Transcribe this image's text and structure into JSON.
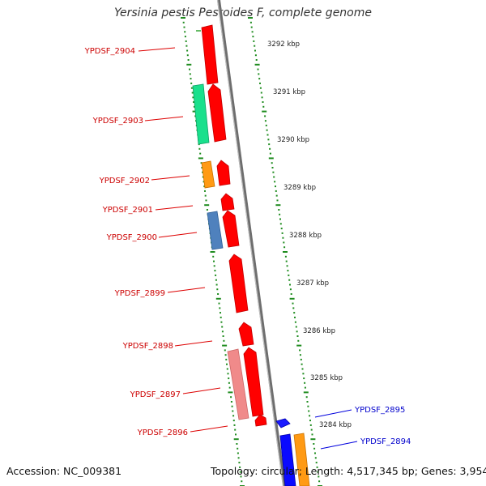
{
  "title": "Yersinia pestis Pestoides F, complete genome",
  "footer": {
    "accession": "Accession: NC_009381",
    "topology": "Topology: circular; Length: 4,517,345 bp; Genes: 3,954"
  },
  "colors": {
    "backbone": "#8a8a8a",
    "ticks": "#1f8c1f",
    "forward_gene_label": "#cc0000",
    "reverse_gene_label": "#0000cc"
  },
  "scale_labels": [
    "3292 kbp",
    "3291 kbp",
    "3290 kbp",
    "3289 kbp",
    "3288 kbp",
    "3287 kbp",
    "3286 kbp",
    "3285 kbp",
    "3284 kbp"
  ],
  "genes": [
    {
      "label": "YPDSF_2904",
      "strand": "forward"
    },
    {
      "label": "YPDSF_2903",
      "strand": "forward"
    },
    {
      "label": "YPDSF_2902",
      "strand": "forward"
    },
    {
      "label": "YPDSF_2901",
      "strand": "forward"
    },
    {
      "label": "YPDSF_2900",
      "strand": "forward"
    },
    {
      "label": "YPDSF_2899",
      "strand": "forward"
    },
    {
      "label": "YPDSF_2898",
      "strand": "forward"
    },
    {
      "label": "YPDSF_2897",
      "strand": "forward"
    },
    {
      "label": "YPDSF_2896",
      "strand": "forward"
    },
    {
      "label": "YPDSF_2895",
      "strand": "reverse"
    },
    {
      "label": "YPDSF_2894",
      "strand": "reverse"
    }
  ]
}
